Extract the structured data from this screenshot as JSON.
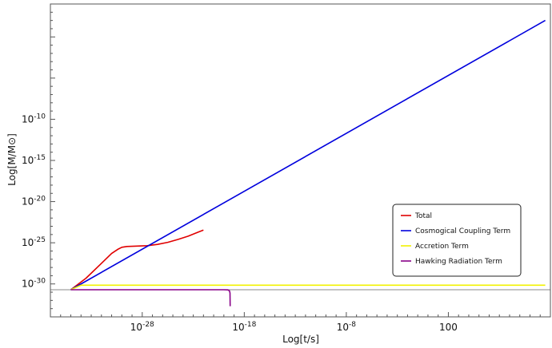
{
  "chart_data": {
    "type": "line",
    "title": "",
    "xlabel": "Log[t/s]",
    "ylabel": "Log[M/M⊙]",
    "xscale": "log",
    "yscale": "log",
    "xlim_log10": [
      -37,
      12
    ],
    "ylim_log10": [
      -34,
      4
    ],
    "x_tick_labels": [
      {
        "log10": -28,
        "label": "10",
        "exp": "-28"
      },
      {
        "log10": -18,
        "label": "10",
        "exp": "-18"
      },
      {
        "log10": -8,
        "label": "10",
        "exp": "-8"
      },
      {
        "log10": 2,
        "label": "100",
        "exp": ""
      }
    ],
    "y_tick_labels": [
      {
        "log10": -10,
        "label": "10",
        "exp": "-10"
      },
      {
        "log10": -15,
        "label": "10",
        "exp": "-15"
      },
      {
        "log10": -20,
        "label": "10",
        "exp": "-20"
      },
      {
        "log10": -25,
        "label": "10",
        "exp": "-25"
      },
      {
        "log10": -30,
        "label": "10",
        "exp": "-30"
      }
    ],
    "reference_line_log10": -30.7,
    "grid": false,
    "legend_position": "right",
    "series": [
      {
        "name": "Total",
        "color": "#e00000",
        "points_log10": [
          [
            -35,
            -30.7
          ],
          [
            -33.5,
            -29.3
          ],
          [
            -32,
            -27.5
          ],
          [
            -31,
            -26.3
          ],
          [
            -30.4,
            -25.8
          ],
          [
            -30,
            -25.55
          ],
          [
            -29.5,
            -25.45
          ],
          [
            -28.5,
            -25.4
          ],
          [
            -27.5,
            -25.35
          ],
          [
            -26.5,
            -25.2
          ],
          [
            -25.5,
            -24.95
          ],
          [
            -24.5,
            -24.6
          ],
          [
            -23.5,
            -24.2
          ],
          [
            -22.5,
            -23.7
          ],
          [
            -22,
            -23.45
          ]
        ]
      },
      {
        "name": "Cosmogical Coupling Term",
        "color": "#0000dd",
        "points_log10": [
          [
            -35,
            -30.7
          ],
          [
            11.5,
            2.0
          ]
        ]
      },
      {
        "name": "Accretion Term",
        "color": "#f2f200",
        "points_log10": [
          [
            -35,
            -30.7
          ],
          [
            -34,
            -30.15
          ],
          [
            11.5,
            -30.15
          ]
        ]
      },
      {
        "name": "Hawking Radiation Term",
        "color": "#880088",
        "points_log10": [
          [
            -35,
            -30.7
          ],
          [
            -20,
            -30.7
          ],
          [
            -19.6,
            -30.72
          ],
          [
            -19.45,
            -30.85
          ],
          [
            -19.4,
            -31.1
          ],
          [
            -19.38,
            -32.7
          ]
        ]
      }
    ]
  }
}
